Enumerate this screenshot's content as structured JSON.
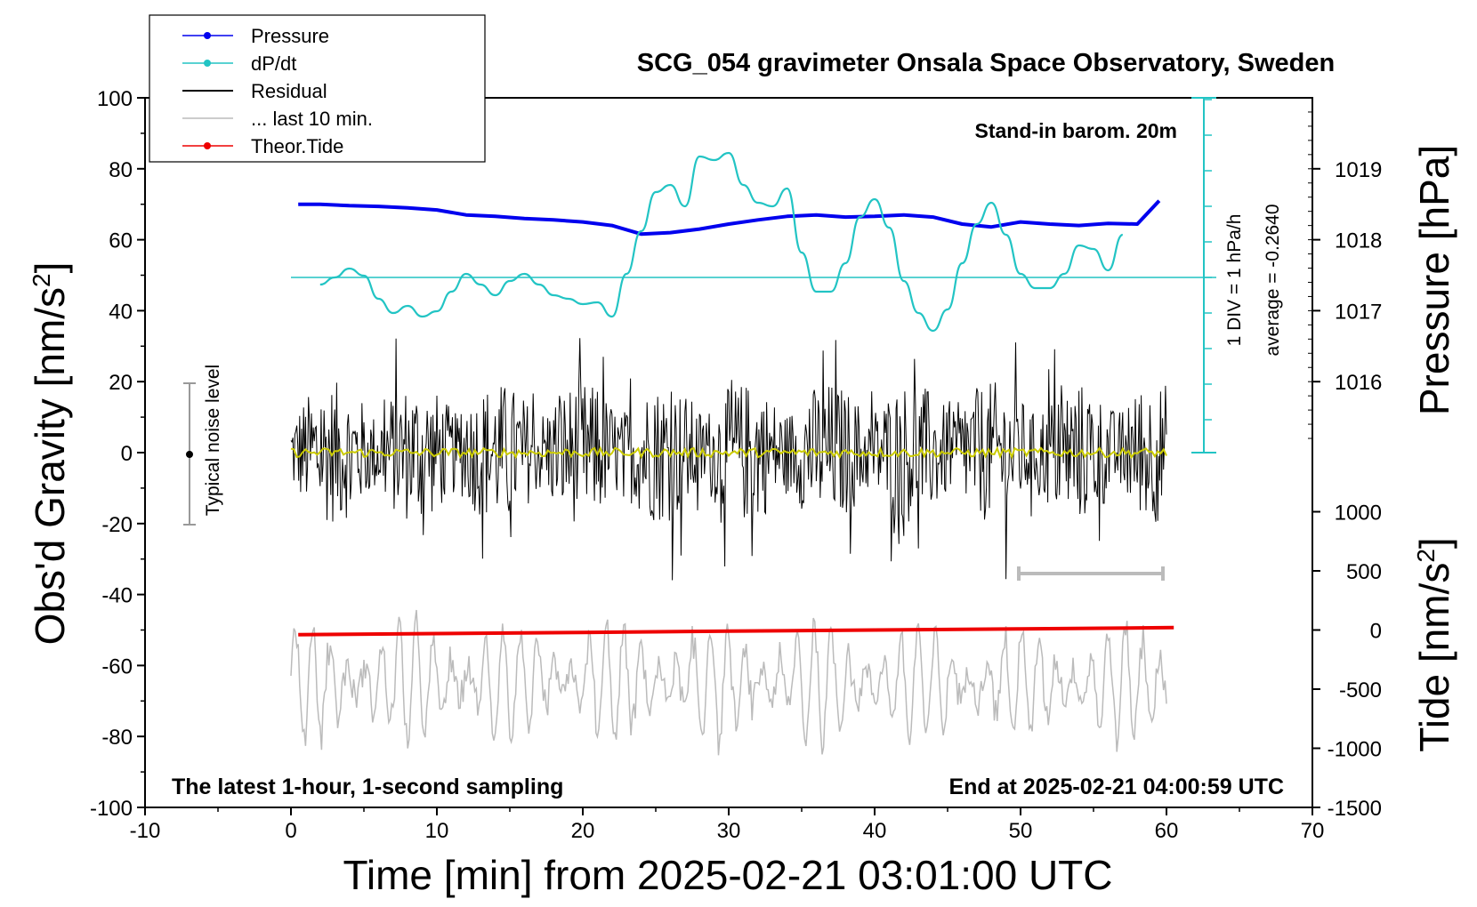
{
  "chart_data": {
    "type": "line",
    "title": "SCG_054 gravimeter Onsala Space Observatory, Sweden",
    "xlabel": "Time [min] from 2025-02-21 03:01:00 UTC",
    "ylabel_left_main": "Obs'd Gravity [nm/s",
    "ylabel_left_sup": "2",
    "ylabel_left_close": "]",
    "ylabel_right_top": "Pressure [hPa]",
    "ylabel_right_bottom_main": "Tide [nm/s",
    "ylabel_right_bottom_sup": "2",
    "ylabel_right_bottom_close": "]",
    "xlim": [
      -10,
      70
    ],
    "ylim": [
      -100,
      100
    ],
    "x_ticks": [
      "-10",
      "0",
      "10",
      "20",
      "30",
      "40",
      "50",
      "60",
      "70"
    ],
    "y_ticks": [
      "100",
      "80",
      "60",
      "40",
      "20",
      "0",
      "-20",
      "-40",
      "-60",
      "-80",
      "-100"
    ],
    "pressure_axis": {
      "ticks": [
        "1019",
        "1018",
        "1017",
        "1016"
      ],
      "range_hPa": [
        1015.0,
        1020.0
      ]
    },
    "tide_axis": {
      "ticks": [
        "1000",
        "500",
        "0",
        "-500",
        "-1000",
        "-1500"
      ],
      "range": [
        -1500,
        1500
      ]
    },
    "annotations": {
      "barometer": "Stand-in barom. 20m",
      "div_label": "1 DIV = 1 hPa/h",
      "average_label": "average = -0.2640",
      "noise_label": "Typical noise level",
      "bottom_left": "The latest 1-hour, 1-second sampling",
      "bottom_right": "End at 2025-02-21 04:00:59 UTC"
    },
    "legend": {
      "position": "top-left",
      "entries": [
        {
          "label": "Pressure",
          "color": "#0000ee"
        },
        {
          "label": "dP/dt",
          "color": "#22c4c4"
        },
        {
          "label": "Residual",
          "color": "#000000"
        },
        {
          "label": "... last 10 min.",
          "color": "#bbbbbb"
        },
        {
          "label": "Theor.Tide",
          "color": "#ee0000"
        }
      ]
    },
    "series": [
      {
        "name": "Pressure",
        "units": "hPa",
        "color": "#0000ee",
        "x": [
          0.5,
          2,
          4,
          6,
          8,
          10,
          12,
          14,
          16,
          18,
          20,
          22,
          24,
          26,
          28,
          30,
          32,
          34,
          36,
          38,
          40,
          42,
          44,
          46,
          48,
          50,
          52,
          54,
          56,
          58,
          59.5
        ],
        "y": [
          1018.5,
          1018.5,
          1018.48,
          1018.47,
          1018.45,
          1018.42,
          1018.35,
          1018.33,
          1018.3,
          1018.28,
          1018.25,
          1018.2,
          1018.08,
          1018.1,
          1018.15,
          1018.22,
          1018.28,
          1018.33,
          1018.35,
          1018.32,
          1018.33,
          1018.35,
          1018.32,
          1018.22,
          1018.18,
          1018.25,
          1018.22,
          1018.2,
          1018.23,
          1018.22,
          1018.55
        ]
      },
      {
        "name": "dP/dt",
        "units": "hPa/h, 1 DIV = 1 hPa/h, centered on average -0.2640",
        "color": "#22c4c4",
        "x": [
          2,
          3,
          4,
          5,
          6,
          7,
          8,
          9,
          10,
          11,
          12,
          13,
          14,
          15,
          16,
          17,
          18,
          19,
          20,
          21,
          22,
          23,
          24,
          25,
          26,
          27,
          28,
          29,
          30,
          31,
          32,
          33,
          34,
          35,
          36,
          37,
          38,
          39,
          40,
          41,
          42,
          43,
          44,
          45,
          46,
          47,
          48,
          49,
          50,
          51,
          52,
          53,
          54,
          55,
          56,
          57
        ],
        "y": [
          -0.2,
          0.0,
          0.25,
          0.05,
          -0.6,
          -1.0,
          -0.8,
          -1.1,
          -0.95,
          -0.4,
          0.1,
          -0.2,
          -0.5,
          -0.1,
          0.1,
          -0.2,
          -0.5,
          -0.6,
          -0.75,
          -0.7,
          -1.1,
          0.1,
          1.3,
          2.4,
          2.6,
          2.0,
          3.4,
          3.3,
          3.5,
          2.6,
          2.1,
          2.0,
          2.5,
          0.7,
          -0.4,
          -0.4,
          0.4,
          1.7,
          2.2,
          1.4,
          -0.1,
          -1.0,
          -1.5,
          -0.9,
          0.4,
          1.5,
          2.1,
          1.2,
          0.1,
          -0.3,
          -0.3,
          0.1,
          0.9,
          0.8,
          0.2,
          1.2
        ]
      },
      {
        "name": "Residual",
        "units": "nm/s2",
        "color": "#000000",
        "x_range": [
          0,
          60
        ],
        "amplitude_nm_s2": 20
      },
      {
        "name": "... last 10 min.",
        "units": "nm/s2",
        "color": "#bbbbbb",
        "x_range": [
          0,
          60
        ],
        "offset_nm_s2": -65,
        "amplitude_nm_s2": 17
      },
      {
        "name": "Theor.Tide",
        "units": "nm/s2",
        "color": "#ee0000",
        "x": [
          0.5,
          10,
          20,
          30,
          40,
          50,
          60.5
        ],
        "y": [
          -40,
          -30,
          -20,
          -10,
          0,
          10,
          20
        ]
      },
      {
        "name": "Smoothed residual",
        "units": "nm/s2",
        "color": "#cccc00",
        "x_range": [
          0,
          60
        ],
        "value": 0
      }
    ]
  }
}
